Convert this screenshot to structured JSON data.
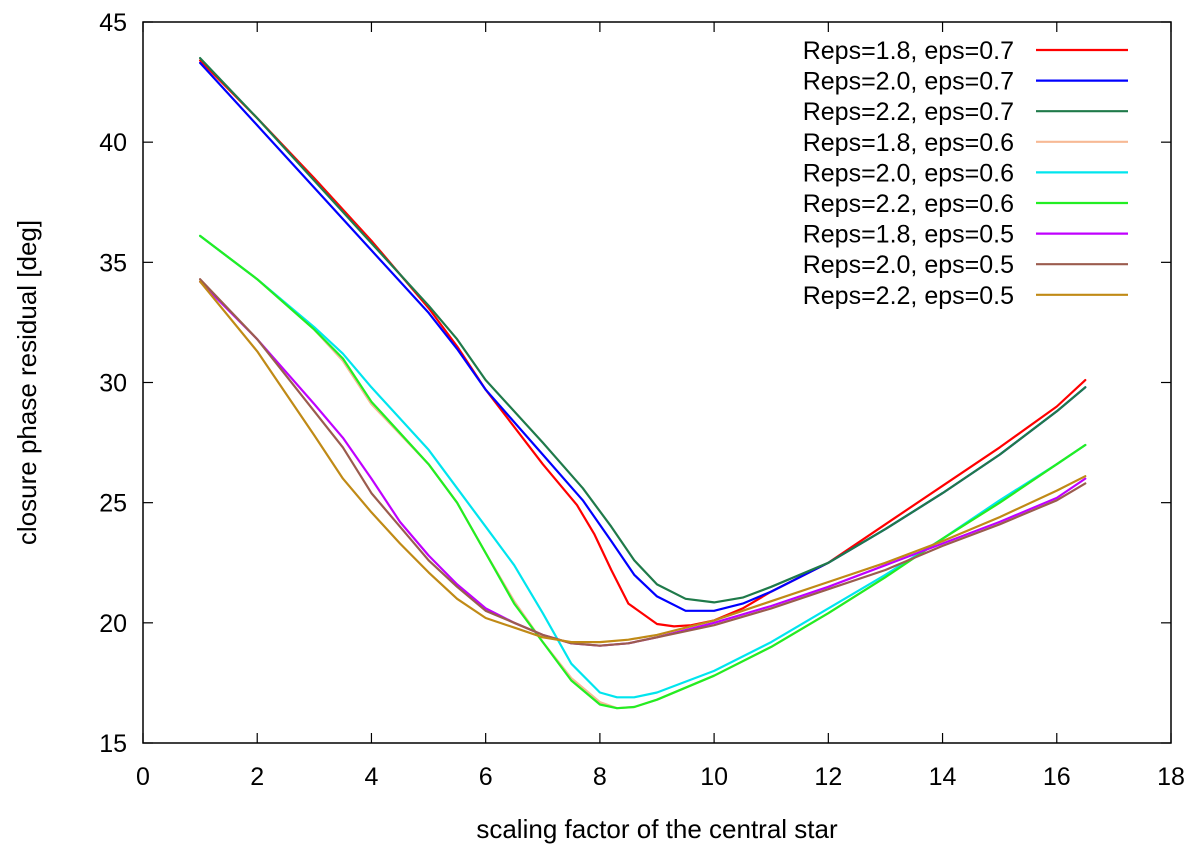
{
  "chart_data": {
    "type": "line",
    "title": "",
    "xlabel": "scaling factor of the central star",
    "ylabel": "closure phase residual [deg]",
    "xlim": [
      0,
      18
    ],
    "ylim": [
      15,
      45
    ],
    "x_ticks": [
      0,
      2,
      4,
      6,
      8,
      10,
      12,
      14,
      16,
      18
    ],
    "y_ticks": [
      15,
      20,
      25,
      30,
      35,
      40,
      45
    ],
    "grid": false,
    "legend_position": "top-right",
    "series": [
      {
        "name": "Reps=1.8, eps=0.7",
        "color": "#ff0000",
        "x": [
          1,
          2,
          3,
          4,
          5,
          5.5,
          6,
          7,
          7.6,
          7.9,
          8.2,
          8.5,
          9,
          9.3,
          9.6,
          10,
          10.5,
          11,
          12,
          13,
          14,
          15,
          16,
          16.5
        ],
        "y": [
          43.4,
          41.0,
          38.5,
          35.9,
          33.1,
          31.5,
          29.7,
          26.6,
          24.9,
          23.7,
          22.2,
          20.8,
          19.95,
          19.85,
          19.9,
          20.1,
          20.6,
          21.3,
          22.5,
          24.1,
          25.7,
          27.3,
          29.0,
          30.1
        ]
      },
      {
        "name": "Reps=2.0, eps=0.7",
        "color": "#0000ff",
        "x": [
          1,
          2,
          3,
          4,
          5,
          5.5,
          6,
          7,
          7.7,
          8.2,
          8.6,
          9,
          9.5,
          10,
          10.5,
          11,
          12,
          13,
          14,
          15,
          16,
          16.5
        ],
        "y": [
          43.3,
          40.7,
          38.1,
          35.5,
          32.9,
          31.4,
          29.7,
          27.0,
          25.1,
          23.4,
          22.0,
          21.1,
          20.5,
          20.5,
          20.8,
          21.3,
          22.5,
          23.9,
          25.4,
          27.0,
          28.8,
          29.8
        ]
      },
      {
        "name": "Reps=2.2, eps=0.7",
        "color": "#1f7a4a",
        "x": [
          1,
          2,
          3,
          4,
          5,
          5.5,
          6,
          7,
          7.7,
          8.2,
          8.6,
          9,
          9.5,
          10,
          10.5,
          11,
          12,
          13,
          14,
          15,
          16,
          16.5
        ],
        "y": [
          43.5,
          41.0,
          38.4,
          35.8,
          33.2,
          31.8,
          30.1,
          27.5,
          25.6,
          24.0,
          22.6,
          21.6,
          21.0,
          20.85,
          21.05,
          21.5,
          22.5,
          23.9,
          25.4,
          27.0,
          28.8,
          29.8
        ]
      },
      {
        "name": "Reps=1.8, eps=0.6",
        "color": "#f7b995",
        "x": [
          1,
          2,
          3,
          3.5,
          4,
          5,
          5.5,
          6,
          6.5,
          7,
          7.5,
          8,
          8.3,
          8.6,
          9,
          10,
          11,
          12,
          13,
          14,
          15,
          16,
          16.5
        ],
        "y": [
          36.1,
          34.3,
          32.2,
          30.9,
          29.1,
          26.6,
          25.0,
          22.9,
          20.9,
          19.2,
          17.7,
          16.7,
          16.45,
          16.5,
          16.8,
          17.8,
          19.0,
          20.4,
          21.9,
          23.5,
          25.0,
          26.6,
          27.4
        ]
      },
      {
        "name": "Reps=2.0, eps=0.6",
        "color": "#00e5ee",
        "x": [
          1,
          2,
          3,
          3.5,
          4,
          5,
          5.5,
          6,
          6.5,
          7,
          7.5,
          8,
          8.3,
          8.6,
          9,
          10,
          11,
          12,
          13,
          14,
          15,
          16,
          16.5
        ],
        "y": [
          36.1,
          34.3,
          32.3,
          31.2,
          29.8,
          27.2,
          25.6,
          24.0,
          22.4,
          20.4,
          18.3,
          17.1,
          16.9,
          16.9,
          17.1,
          18.0,
          19.2,
          20.6,
          22.0,
          23.5,
          25.1,
          26.6,
          27.4
        ]
      },
      {
        "name": "Reps=2.2, eps=0.6",
        "color": "#22ee22",
        "x": [
          1,
          2,
          3,
          3.5,
          4,
          5,
          5.5,
          6,
          6.5,
          7,
          7.5,
          8,
          8.3,
          8.6,
          9,
          10,
          11,
          12,
          13,
          14,
          15,
          16,
          16.5
        ],
        "y": [
          36.1,
          34.3,
          32.2,
          31.0,
          29.2,
          26.6,
          25.0,
          22.9,
          20.8,
          19.2,
          17.6,
          16.6,
          16.45,
          16.5,
          16.8,
          17.8,
          19.0,
          20.4,
          21.9,
          23.5,
          25.0,
          26.6,
          27.4
        ]
      },
      {
        "name": "Reps=1.8, eps=0.5",
        "color": "#c000ff",
        "x": [
          1,
          2,
          3,
          3.5,
          4,
          4.5,
          5,
          5.5,
          6,
          6.5,
          7,
          7.5,
          8,
          8.5,
          9,
          10,
          11,
          12,
          13,
          14,
          15,
          16,
          16.5
        ],
        "y": [
          34.2,
          31.8,
          29.1,
          27.7,
          26.0,
          24.2,
          22.8,
          21.6,
          20.6,
          20.0,
          19.5,
          19.15,
          19.05,
          19.15,
          19.4,
          20.0,
          20.7,
          21.5,
          22.4,
          23.3,
          24.2,
          25.2,
          26.0
        ]
      },
      {
        "name": "Reps=2.0, eps=0.5",
        "color": "#9b5c4e",
        "x": [
          1,
          2,
          3,
          3.5,
          4,
          4.5,
          5,
          5.5,
          6,
          6.5,
          7,
          7.5,
          8,
          8.5,
          9,
          10,
          11,
          12,
          13,
          14,
          15,
          16,
          16.5
        ],
        "y": [
          34.3,
          31.8,
          28.8,
          27.3,
          25.4,
          24.0,
          22.6,
          21.5,
          20.5,
          20.0,
          19.5,
          19.15,
          19.05,
          19.15,
          19.4,
          19.9,
          20.6,
          21.4,
          22.2,
          23.2,
          24.1,
          25.1,
          25.8
        ]
      },
      {
        "name": "Reps=2.2, eps=0.5",
        "color": "#c08a16",
        "x": [
          1,
          2,
          3,
          3.5,
          4,
          4.5,
          5,
          5.5,
          6,
          6.5,
          7,
          7.5,
          8,
          8.5,
          9,
          10,
          11,
          12,
          13,
          14,
          15,
          16,
          16.5
        ],
        "y": [
          34.2,
          31.3,
          27.8,
          26.0,
          24.6,
          23.3,
          22.1,
          21.0,
          20.2,
          19.8,
          19.4,
          19.2,
          19.2,
          19.3,
          19.5,
          20.1,
          20.9,
          21.7,
          22.5,
          23.4,
          24.4,
          25.5,
          26.1
        ]
      }
    ]
  }
}
